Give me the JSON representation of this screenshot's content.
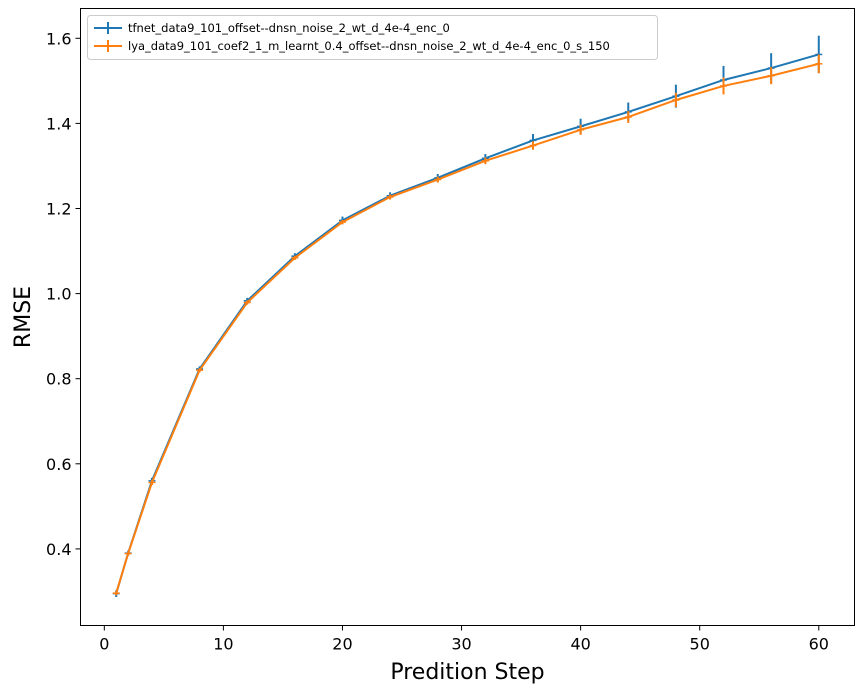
{
  "chart_data": {
    "type": "line",
    "title": "",
    "xlabel": "Predition Step",
    "ylabel": "RMSE",
    "xlim": [
      -2,
      63
    ],
    "ylim": [
      0.22,
      1.67
    ],
    "xticks": [
      0,
      10,
      20,
      30,
      40,
      50,
      60
    ],
    "yticks": [
      0.4,
      0.6,
      0.8,
      1.0,
      1.2,
      1.4,
      1.6
    ],
    "xtick_labels": [
      "0",
      "10",
      "20",
      "30",
      "40",
      "50",
      "60"
    ],
    "ytick_labels": [
      "0.4",
      "0.6",
      "0.8",
      "1.0",
      "1.2",
      "1.4",
      "1.6"
    ],
    "grid": false,
    "legend_position": "top-left",
    "x": [
      1,
      2,
      4,
      8,
      12,
      16,
      20,
      24,
      28,
      32,
      36,
      40,
      44,
      48,
      52,
      56,
      60
    ],
    "series": [
      {
        "name": "tfnet_data9_101_offset--dnsn_noise_2_wt_d_4e-4_enc_0",
        "color": "#1f77b4",
        "values": [
          0.295,
          0.39,
          0.56,
          0.823,
          0.983,
          1.088,
          1.172,
          1.23,
          1.272,
          1.318,
          1.36,
          1.393,
          1.427,
          1.464,
          1.502,
          1.53,
          1.562
        ],
        "errors": [
          0.008,
          0.006,
          0.007,
          0.006,
          0.007,
          0.007,
          0.009,
          0.008,
          0.009,
          0.01,
          0.015,
          0.018,
          0.022,
          0.027,
          0.033,
          0.035,
          0.044
        ]
      },
      {
        "name": "lya_data9_101_coef2_1_m_learnt_0.4_offset--dnsn_noise_2_wt_d_4e-4_enc_0_s_150",
        "color": "#ff7f0e",
        "values": [
          0.296,
          0.389,
          0.556,
          0.82,
          0.979,
          1.084,
          1.168,
          1.227,
          1.268,
          1.312,
          1.348,
          1.385,
          1.415,
          1.455,
          1.488,
          1.512,
          1.54
        ],
        "errors": [
          0.005,
          0.005,
          0.006,
          0.005,
          0.005,
          0.005,
          0.005,
          0.006,
          0.007,
          0.008,
          0.01,
          0.012,
          0.014,
          0.017,
          0.02,
          0.02,
          0.022
        ]
      }
    ]
  }
}
